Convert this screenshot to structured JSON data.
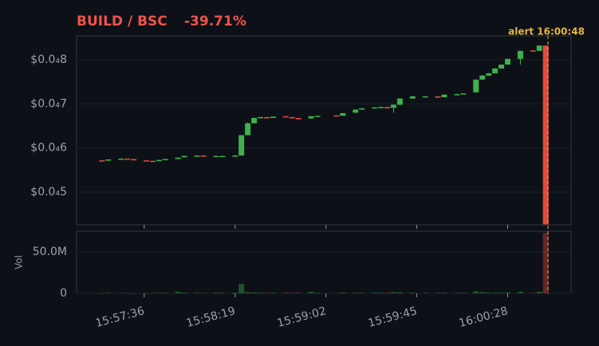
{
  "chart_data": {
    "type": "candlestick",
    "title": "BUILD / BSC",
    "change": "-39.71%",
    "annotation": "alert 16:00:48",
    "volume_label": "Vol",
    "up_color": "#3fb04c",
    "down_color": "#e5493d",
    "grid": true,
    "x": [
      "15:57:16",
      "15:57:19",
      "15:57:25",
      "15:57:28",
      "15:57:31",
      "15:57:37",
      "15:57:40",
      "15:57:43",
      "15:57:46",
      "15:57:52",
      "15:57:55",
      "15:58:01",
      "15:58:04",
      "15:58:10",
      "15:58:13",
      "15:58:19",
      "15:58:22",
      "15:58:25",
      "15:58:28",
      "15:58:31",
      "15:58:34",
      "15:58:37",
      "15:58:43",
      "15:58:46",
      "15:58:49",
      "15:58:55",
      "15:58:58",
      "15:59:07",
      "15:59:10",
      "15:59:16",
      "15:59:19",
      "15:59:25",
      "15:59:28",
      "15:59:31",
      "15:59:34",
      "15:59:37",
      "15:59:43",
      "15:59:49",
      "15:59:55",
      "15:59:58",
      "16:00:04",
      "16:00:07",
      "16:00:13",
      "16:00:16",
      "16:00:19",
      "16:00:22",
      "16:00:25",
      "16:00:28",
      "16:00:34",
      "16:00:40",
      "16:00:43",
      "16:00:46"
    ],
    "open": [
      5.72e-05,
      5.72e-05,
      5.75e-05,
      5.76e-05,
      5.75e-05,
      5.72e-05,
      5.71e-05,
      5.7e-05,
      5.74e-05,
      5.75e-05,
      5.79e-05,
      5.82e-05,
      5.83e-05,
      5.81e-05,
      5.81e-05,
      5.81e-05,
      5.83e-05,
      6.29e-05,
      6.56e-05,
      6.68e-05,
      6.7e-05,
      6.68e-05,
      6.72e-05,
      6.7e-05,
      6.68e-05,
      6.67e-05,
      6.72e-05,
      6.74e-05,
      6.73e-05,
      6.8e-05,
      6.87e-05,
      6.9e-05,
      6.92e-05,
      6.93e-05,
      6.91e-05,
      6.98e-05,
      7.12e-05,
      7.16e-05,
      7.17e-05,
      7.15e-05,
      7.21e-05,
      7.22e-05,
      7.26e-05,
      7.55e-05,
      7.64e-05,
      7.69e-05,
      7.8e-05,
      7.89e-05,
      8.02e-05,
      8.21e-05,
      8.2e-05,
      8.32e-05
    ],
    "high": [
      5.72e-05,
      5.74e-05,
      5.76e-05,
      5.76e-05,
      5.75e-05,
      5.72e-05,
      5.71e-05,
      5.73e-05,
      5.75e-05,
      5.79e-05,
      5.82e-05,
      5.83e-05,
      5.83e-05,
      5.82e-05,
      5.82e-05,
      5.84e-05,
      6.29e-05,
      6.58e-05,
      6.69e-05,
      6.71e-05,
      6.7e-05,
      6.71e-05,
      6.72e-05,
      6.7e-05,
      6.68e-05,
      6.72e-05,
      6.73e-05,
      6.74e-05,
      6.79e-05,
      6.88e-05,
      6.9e-05,
      6.93e-05,
      6.94e-05,
      6.93e-05,
      6.99e-05,
      7.13e-05,
      7.18e-05,
      7.18e-05,
      7.17e-05,
      7.21e-05,
      7.23e-05,
      7.24e-05,
      7.55e-05,
      7.65e-05,
      7.7e-05,
      7.81e-05,
      7.89e-05,
      8.02e-05,
      8.2e-05,
      8.21e-05,
      8.32e-05,
      8.32e-05
    ],
    "low": [
      5.71e-05,
      5.72e-05,
      5.75e-05,
      5.75e-05,
      5.72e-05,
      5.7e-05,
      5.7e-05,
      5.7e-05,
      5.74e-05,
      5.75e-05,
      5.79e-05,
      5.82e-05,
      5.82e-05,
      5.81e-05,
      5.81e-05,
      5.8e-05,
      5.83e-05,
      6.29e-05,
      6.56e-05,
      6.68e-05,
      6.67e-05,
      6.68e-05,
      6.71e-05,
      6.67e-05,
      6.65e-05,
      6.66e-05,
      6.72e-05,
      6.73e-05,
      6.73e-05,
      6.8e-05,
      6.87e-05,
      6.9e-05,
      6.92e-05,
      6.9e-05,
      6.8e-05,
      6.97e-05,
      7.12e-05,
      7.16e-05,
      7.14e-05,
      7.15e-05,
      7.2e-05,
      7.22e-05,
      7.26e-05,
      7.55e-05,
      7.63e-05,
      7.69e-05,
      7.8e-05,
      7.89e-05,
      7.89e-05,
      8.2e-05,
      8.2e-05,
      4.27e-05
    ],
    "close": [
      5.71e-05,
      5.74e-05,
      5.76e-05,
      5.75e-05,
      5.72e-05,
      5.7e-05,
      5.7e-05,
      5.73e-05,
      5.75e-05,
      5.78e-05,
      5.82e-05,
      5.83e-05,
      5.82e-05,
      5.82e-05,
      5.82e-05,
      5.83e-05,
      6.29e-05,
      6.56e-05,
      6.68e-05,
      6.7e-05,
      6.67e-05,
      6.71e-05,
      6.71e-05,
      6.67e-05,
      6.65e-05,
      6.72e-05,
      6.73e-05,
      6.73e-05,
      6.79e-05,
      6.87e-05,
      6.9e-05,
      6.92e-05,
      6.93e-05,
      6.9e-05,
      6.98e-05,
      7.12e-05,
      7.17e-05,
      7.17e-05,
      7.14e-05,
      7.21e-05,
      7.22e-05,
      7.24e-05,
      7.55e-05,
      7.64e-05,
      7.69e-05,
      7.8e-05,
      7.89e-05,
      8.02e-05,
      8.2e-05,
      8.2e-05,
      8.32e-05,
      4.27e-05
    ],
    "volume": [
      300000,
      600000,
      500000,
      400000,
      300000,
      500000,
      400000,
      600000,
      700000,
      2000000,
      800000,
      600000,
      500000,
      900000,
      700000,
      800000,
      11500000,
      1500000,
      1200000,
      800000,
      600000,
      700000,
      900000,
      600000,
      700000,
      2000000,
      800000,
      500000,
      1000000,
      700000,
      600000,
      800000,
      900000,
      700000,
      1500000,
      1300000,
      800000,
      600000,
      700000,
      900000,
      600000,
      700000,
      2500000,
      1500000,
      1000000,
      800000,
      900000,
      1200000,
      2000000,
      600000,
      2000000,
      73000000
    ],
    "xlim": [
      "15:57:04",
      "16:00:58"
    ],
    "xticks": [
      "15:57:36",
      "15:58:19",
      "15:59:02",
      "15:59:45",
      "16:00:28"
    ],
    "ylim": [
      4.26e-05,
      8.54e-05
    ],
    "yticks": [
      {
        "value": 5e-05,
        "label": "$0.0₄5"
      },
      {
        "value": 6e-05,
        "label": "$0.0₄6"
      },
      {
        "value": 7e-05,
        "label": "$0.0₄7"
      },
      {
        "value": 8e-05,
        "label": "$0.0₄8"
      }
    ],
    "y2lim": [
      0,
      75000000
    ],
    "y2ticks": [
      0,
      {
        "value": 50000000,
        "label": "50.0M"
      }
    ]
  }
}
